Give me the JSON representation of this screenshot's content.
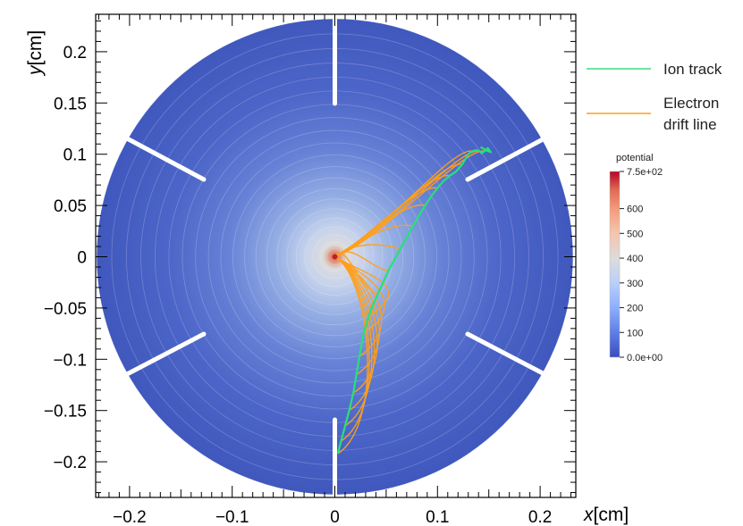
{
  "chart_data": {
    "type": "line",
    "xlabel_var": "x",
    "xlabel_unit": "[cm]",
    "ylabel_var": "y",
    "ylabel_unit": "[cm]",
    "xlim": [
      -0.235,
      0.235
    ],
    "ylim": [
      -0.235,
      0.235
    ],
    "xticks": [
      -0.2,
      -0.1,
      0,
      0.1,
      0.2
    ],
    "xtick_labels": [
      "−0.2",
      "−0.1",
      "0",
      "0.1",
      "0.2"
    ],
    "yticks": [
      0.2,
      0.15,
      0.1,
      0.05,
      0,
      -0.05,
      -0.1,
      -0.15,
      -0.2
    ],
    "ytick_labels": [
      "0.2",
      "0.15",
      "0.1",
      "0.05",
      "0",
      "−0.05",
      "−0.1",
      "−0.15",
      "−0.2"
    ],
    "grid": false,
    "disk_radius": 0.232,
    "potential_colormap": {
      "title": "potential",
      "min": 0,
      "max": 750,
      "tick_values": [
        750,
        600,
        500,
        400,
        300,
        200,
        100,
        0
      ],
      "tick_labels": [
        "7.5e+02",
        "600",
        "500",
        "400",
        "300",
        "200",
        "100",
        "0.0e+00"
      ],
      "colors": [
        "#3b4cc0",
        "#5e7de6",
        "#8db0fe",
        "#b9d0f9",
        "#dddcdc",
        "#f5c4ad",
        "#f49a7b",
        "#e06b53",
        "#b40426"
      ]
    },
    "legend": [
      {
        "label": "Ion track",
        "color": "#3ddc84"
      },
      {
        "label_line1": "Electron",
        "label_line2": "drift line",
        "color": "#ff9f1a"
      }
    ],
    "legend_placement": "right",
    "series": [
      {
        "name": "Ion track",
        "color": "#27e07a",
        "x": [
          0.003,
          0.006,
          0.01,
          0.014,
          0.018,
          0.021,
          0.024,
          0.026,
          0.028,
          0.03,
          0.033,
          0.037,
          0.042,
          0.047,
          0.052,
          0.058,
          0.064,
          0.07,
          0.076,
          0.082,
          0.088,
          0.094,
          0.1,
          0.106,
          0.112,
          0.118,
          0.124,
          0.13,
          0.134,
          0.138,
          0.141,
          0.143,
          0.146,
          0.149,
          0.152,
          0.147,
          0.142
        ],
        "y": [
          -0.192,
          -0.18,
          -0.165,
          -0.15,
          -0.133,
          -0.115,
          -0.097,
          -0.085,
          -0.075,
          -0.068,
          -0.058,
          -0.047,
          -0.036,
          -0.025,
          -0.014,
          -0.003,
          0.008,
          0.019,
          0.03,
          0.04,
          0.05,
          0.059,
          0.067,
          0.074,
          0.079,
          0.083,
          0.09,
          0.1,
          0.103,
          0.104,
          0.103,
          0.101,
          0.103,
          0.106,
          0.102,
          0.104,
          0.107
        ]
      }
    ],
    "electron_drift": {
      "name": "Electron drift line",
      "color": "#ff9f1a",
      "end_point": [
        0.0,
        0.0
      ],
      "start_points_x": [
        0.003,
        0.006,
        0.01,
        0.014,
        0.018,
        0.021,
        0.024,
        0.028,
        0.033,
        0.042,
        0.052,
        0.064,
        0.076,
        0.088,
        0.1,
        0.112,
        0.124,
        0.134,
        0.141,
        0.146
      ],
      "start_points_y": [
        -0.192,
        -0.18,
        -0.165,
        -0.15,
        -0.133,
        -0.115,
        -0.097,
        -0.075,
        -0.058,
        -0.036,
        -0.014,
        0.008,
        0.03,
        0.05,
        0.067,
        0.079,
        0.09,
        0.103,
        0.103,
        0.103
      ]
    },
    "electrodes": [
      {
        "orientation": "vertical",
        "position": "top"
      },
      {
        "orientation": "vertical",
        "position": "bottom"
      },
      {
        "orientation": "diagonal",
        "position": "upper-left"
      },
      {
        "orientation": "diagonal",
        "position": "upper-right"
      },
      {
        "orientation": "diagonal",
        "position": "lower-left"
      },
      {
        "orientation": "diagonal",
        "position": "lower-right"
      }
    ]
  }
}
